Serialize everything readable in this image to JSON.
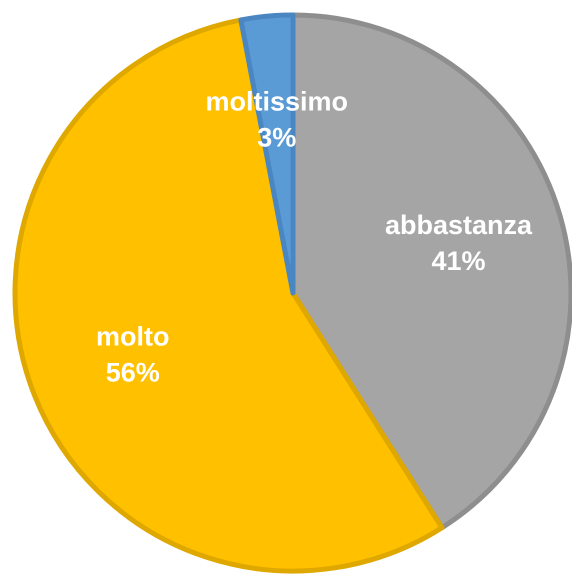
{
  "chart_data": {
    "type": "pie",
    "categories": [
      "abbastanza",
      "molto",
      "moltissimo"
    ],
    "values": [
      41,
      56,
      3
    ],
    "value_labels": [
      "41%",
      "56%",
      "3%"
    ],
    "colors": [
      "#a5a5a5",
      "#ffc000",
      "#5b9bd5"
    ],
    "borders": [
      "#8e8e8e",
      "#dfa800",
      "#4a87c2"
    ]
  }
}
